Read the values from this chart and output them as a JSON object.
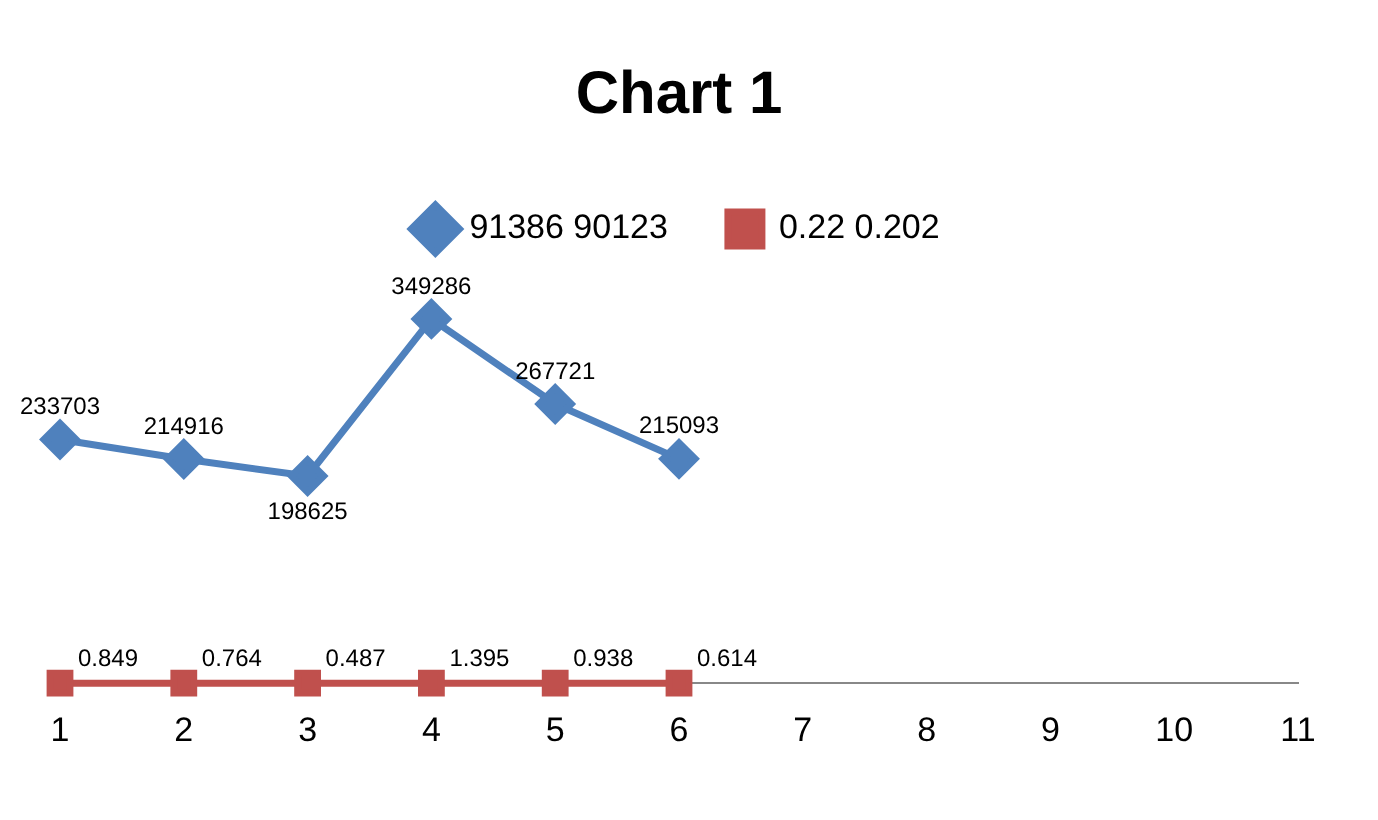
{
  "chart_data": {
    "type": "line",
    "title": "Chart 1",
    "categories": [
      "1",
      "2",
      "3",
      "4",
      "5",
      "6",
      "7",
      "8",
      "9",
      "10",
      "11"
    ],
    "series": [
      {
        "name": "91386 90123",
        "color": "#4f81bd",
        "marker": "diamond",
        "values": [
          233703,
          214916,
          198625,
          349286,
          267721,
          215093,
          null,
          null,
          null,
          null,
          null
        ]
      },
      {
        "name": "0.22 0.202",
        "color": "#c0504d",
        "marker": "square",
        "values": [
          0.849,
          0.764,
          0.487,
          1.395,
          0.938,
          0.614,
          null,
          null,
          null,
          null,
          null
        ]
      }
    ],
    "data_labels": true,
    "legend": "top",
    "grid": false,
    "tick_labels": "x"
  }
}
